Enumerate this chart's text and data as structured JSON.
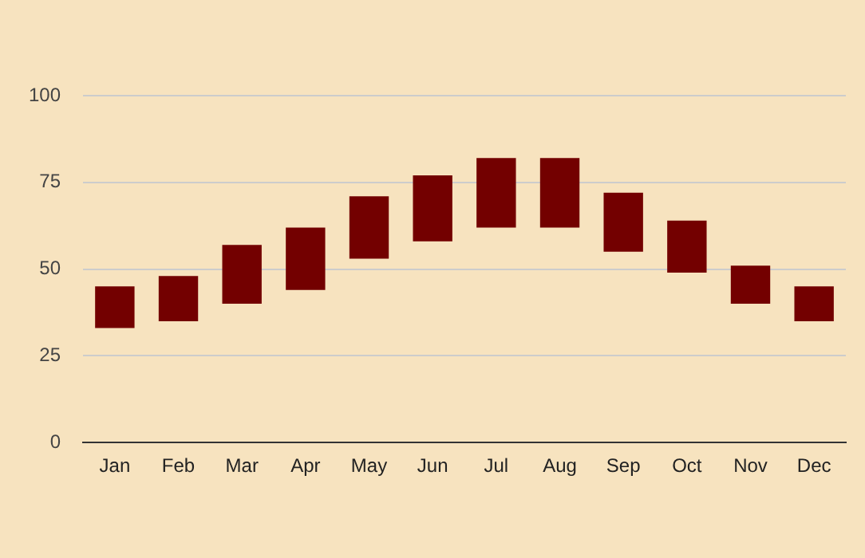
{
  "chart_data": {
    "type": "bar",
    "categories": [
      "Jan",
      "Feb",
      "Mar",
      "Apr",
      "May",
      "Jun",
      "Jul",
      "Aug",
      "Sep",
      "Oct",
      "Nov",
      "Dec"
    ],
    "base": [
      33,
      35,
      40,
      44,
      53,
      58,
      62,
      62,
      55,
      49,
      40,
      35
    ],
    "values": [
      12,
      13,
      17,
      18,
      18,
      19,
      20,
      20,
      17,
      15,
      11,
      10
    ],
    "color": "#730000",
    "ylim": [
      0,
      100
    ],
    "yticks": [
      0,
      25,
      50,
      75,
      100
    ],
    "grid": "y",
    "legend": false
  }
}
